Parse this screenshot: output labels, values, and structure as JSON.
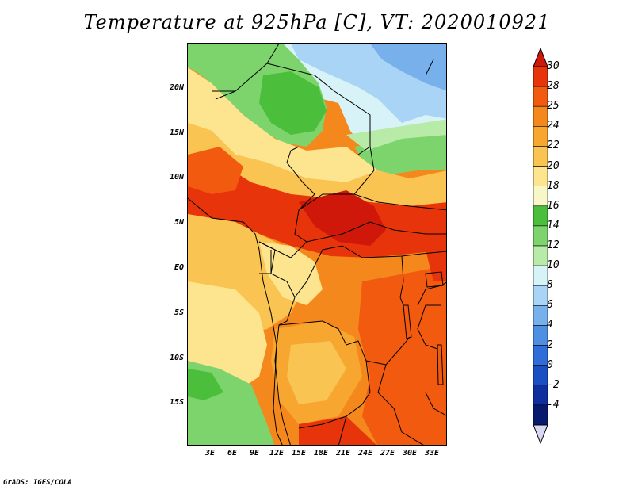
{
  "title": "Temperature at 925hPa [C], VT: 2020010921",
  "footer": "GrADS: IGES/COLA",
  "lat_ticks": [
    "20N",
    "15N",
    "10N",
    "5N",
    "EQ",
    "5S",
    "10S",
    "15S"
  ],
  "lon_ticks": [
    "3E",
    "6E",
    "9E",
    "12E",
    "15E",
    "18E",
    "21E",
    "24E",
    "27E",
    "30E",
    "33E"
  ],
  "colorbar": {
    "labels": [
      "30",
      "28",
      "25",
      "24",
      "22",
      "20",
      "18",
      "16",
      "14",
      "12",
      "10",
      "8",
      "6",
      "4",
      "2",
      "0",
      "-2",
      "-4"
    ],
    "colors": [
      "#e8340a",
      "#f25a10",
      "#f5881c",
      "#f7a630",
      "#f9c451",
      "#fde48e",
      "#f7f7c8",
      "#4bbf3c",
      "#7dd46c",
      "#b8eaa8",
      "#d8f3f8",
      "#a9d4f5",
      "#78b0ec",
      "#4f8fe3",
      "#2f6ed8",
      "#1a4fc4",
      "#0f2f9e",
      "#081a6e"
    ],
    "top_color": "#d0180a",
    "bottom_color": "#d8d8f4"
  },
  "map_colors": {
    "hot": "#e8340a",
    "very_hot": "#d0180a",
    "warm": "#f25a10",
    "orange": "#f5881c",
    "light_orange": "#f7a630",
    "tan": "#f9c451",
    "pale": "#fde48e",
    "cream": "#f7f7c8",
    "green": "#4bbf3c",
    "light_green": "#7dd46c",
    "pale_green": "#b8eaa8",
    "pale_blue": "#d8f3f8",
    "light_blue": "#a9d4f5",
    "blue": "#78b0ec"
  }
}
